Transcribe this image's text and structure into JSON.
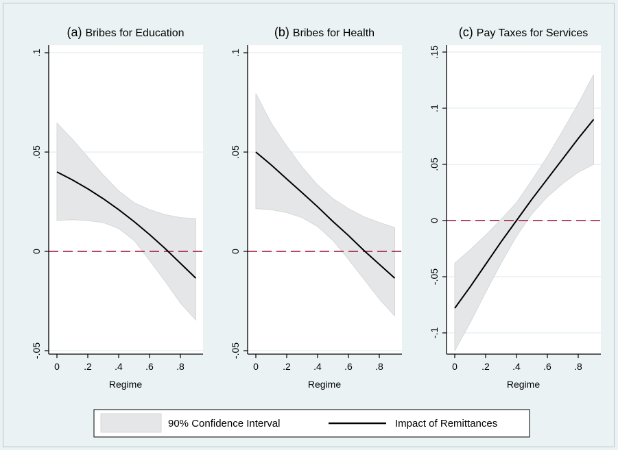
{
  "colors": {
    "background": "#eaf2f3",
    "plot_background": "#ffffff",
    "ci_fill": "#e5e6e7",
    "ci_stroke": "#d6d8d9",
    "line": "#000000",
    "zero_line": "#9b0e36",
    "grid": "#e4ecee"
  },
  "legend": {
    "ci_label": "90% Confidence Interval",
    "line_label": "Impact of Remittances"
  },
  "chart_data": [
    {
      "type": "line",
      "title": "(a) Bribes for Education",
      "title_prefix": "(a)",
      "title_text": "Bribes for Education",
      "xlabel": "Regime",
      "ylabel": "",
      "xlim": [
        0,
        0.9
      ],
      "ylim": [
        -0.05,
        0.1
      ],
      "xticks": [
        0,
        0.2,
        0.4,
        0.6,
        0.8
      ],
      "xtick_labels": [
        "0",
        ".2",
        ".4",
        ".6",
        ".8"
      ],
      "yticks": [
        -0.05,
        0,
        0.05,
        0.1
      ],
      "ytick_labels": [
        "-.05",
        "0",
        ".05",
        ".1"
      ],
      "grid": true,
      "reference_line": 0,
      "x": [
        0,
        0.1,
        0.2,
        0.3,
        0.4,
        0.5,
        0.6,
        0.7,
        0.8,
        0.9
      ],
      "series": [
        {
          "name": "Impact of Remittances",
          "values": [
            0.04,
            0.036,
            0.0315,
            0.0265,
            0.021,
            0.015,
            0.0085,
            0.0015,
            -0.006,
            -0.0135
          ]
        },
        {
          "name": "90% Confidence Interval (lower)",
          "values": [
            0.0155,
            0.016,
            0.0155,
            0.0145,
            0.0115,
            0.0055,
            -0.0045,
            -0.015,
            -0.026,
            -0.0345
          ]
        },
        {
          "name": "90% Confidence Interval (upper)",
          "values": [
            0.0645,
            0.0565,
            0.0475,
            0.0385,
            0.0305,
            0.0245,
            0.021,
            0.0185,
            0.017,
            0.0165
          ]
        }
      ]
    },
    {
      "type": "line",
      "title": "(b) Bribes for Health",
      "title_prefix": "(b)",
      "title_text": "Bribes for Health",
      "xlabel": "Regime",
      "ylabel": "",
      "xlim": [
        0,
        0.9
      ],
      "ylim": [
        -0.05,
        0.1
      ],
      "xticks": [
        0,
        0.2,
        0.4,
        0.6,
        0.8
      ],
      "xtick_labels": [
        "0",
        ".2",
        ".4",
        ".6",
        ".8"
      ],
      "yticks": [
        -0.05,
        0,
        0.05,
        0.1
      ],
      "ytick_labels": [
        "-.05",
        "0",
        ".05",
        ".1"
      ],
      "grid": true,
      "reference_line": 0,
      "x": [
        0,
        0.1,
        0.2,
        0.3,
        0.4,
        0.5,
        0.6,
        0.7,
        0.8,
        0.9
      ],
      "series": [
        {
          "name": "Impact of Remittances",
          "values": [
            0.05,
            0.0435,
            0.0365,
            0.0295,
            0.0225,
            0.015,
            0.008,
            0.0005,
            -0.0065,
            -0.0135
          ]
        },
        {
          "name": "90% Confidence Interval (lower)",
          "values": [
            0.0215,
            0.021,
            0.0195,
            0.017,
            0.0125,
            0.0055,
            -0.004,
            -0.014,
            -0.024,
            -0.0325
          ]
        },
        {
          "name": "90% Confidence Interval (upper)",
          "values": [
            0.0795,
            0.0645,
            0.053,
            0.0425,
            0.0335,
            0.0265,
            0.0215,
            0.0175,
            0.0145,
            0.012
          ]
        }
      ]
    },
    {
      "type": "line",
      "title": "(c) Pay Taxes for Services",
      "title_prefix": "(c)",
      "title_text": "Pay Taxes for Services",
      "xlabel": "Regime",
      "ylabel": "",
      "xlim": [
        0,
        0.9
      ],
      "ylim": [
        -0.115,
        0.15
      ],
      "xticks": [
        0,
        0.2,
        0.4,
        0.6,
        0.8
      ],
      "xtick_labels": [
        "0",
        ".2",
        ".4",
        ".6",
        ".8"
      ],
      "yticks": [
        -0.1,
        -0.05,
        0,
        0.05,
        0.1,
        0.15
      ],
      "ytick_labels": [
        "-.1",
        "-.05",
        "0",
        ".05",
        ".1",
        ".15"
      ],
      "grid": true,
      "reference_line": 0,
      "x": [
        0,
        0.1,
        0.2,
        0.3,
        0.4,
        0.5,
        0.6,
        0.7,
        0.8,
        0.9
      ],
      "series": [
        {
          "name": "Impact of Remittances",
          "values": [
            -0.078,
            -0.059,
            -0.039,
            -0.019,
            0.0,
            0.019,
            0.037,
            0.055,
            0.073,
            0.09
          ]
        },
        {
          "name": "90% Confidence Interval (lower)",
          "values": [
            -0.116,
            -0.091,
            -0.064,
            -0.038,
            -0.014,
            0.006,
            0.021,
            0.033,
            0.043,
            0.05
          ]
        },
        {
          "name": "90% Confidence Interval (upper)",
          "values": [
            -0.038,
            -0.026,
            -0.013,
            0.001,
            0.016,
            0.036,
            0.057,
            0.08,
            0.104,
            0.13
          ]
        }
      ]
    }
  ]
}
